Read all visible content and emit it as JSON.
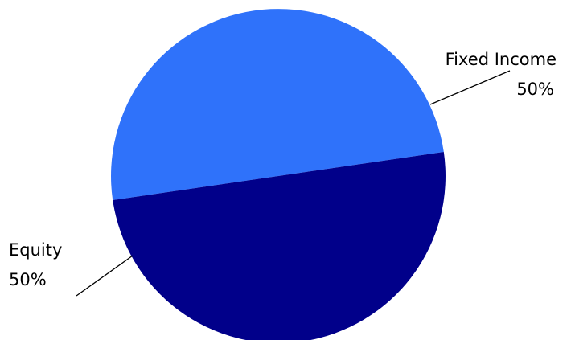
{
  "chart_data": {
    "type": "pie",
    "slices": [
      {
        "label": "Fixed Income",
        "value": 50,
        "value_label": "50%",
        "color": "#2f72fa"
      },
      {
        "label": "Equity",
        "value": 50,
        "value_label": "50%",
        "color": "#01008a"
      }
    ],
    "legend": "none",
    "labels": "outside-with-leader-lines"
  }
}
